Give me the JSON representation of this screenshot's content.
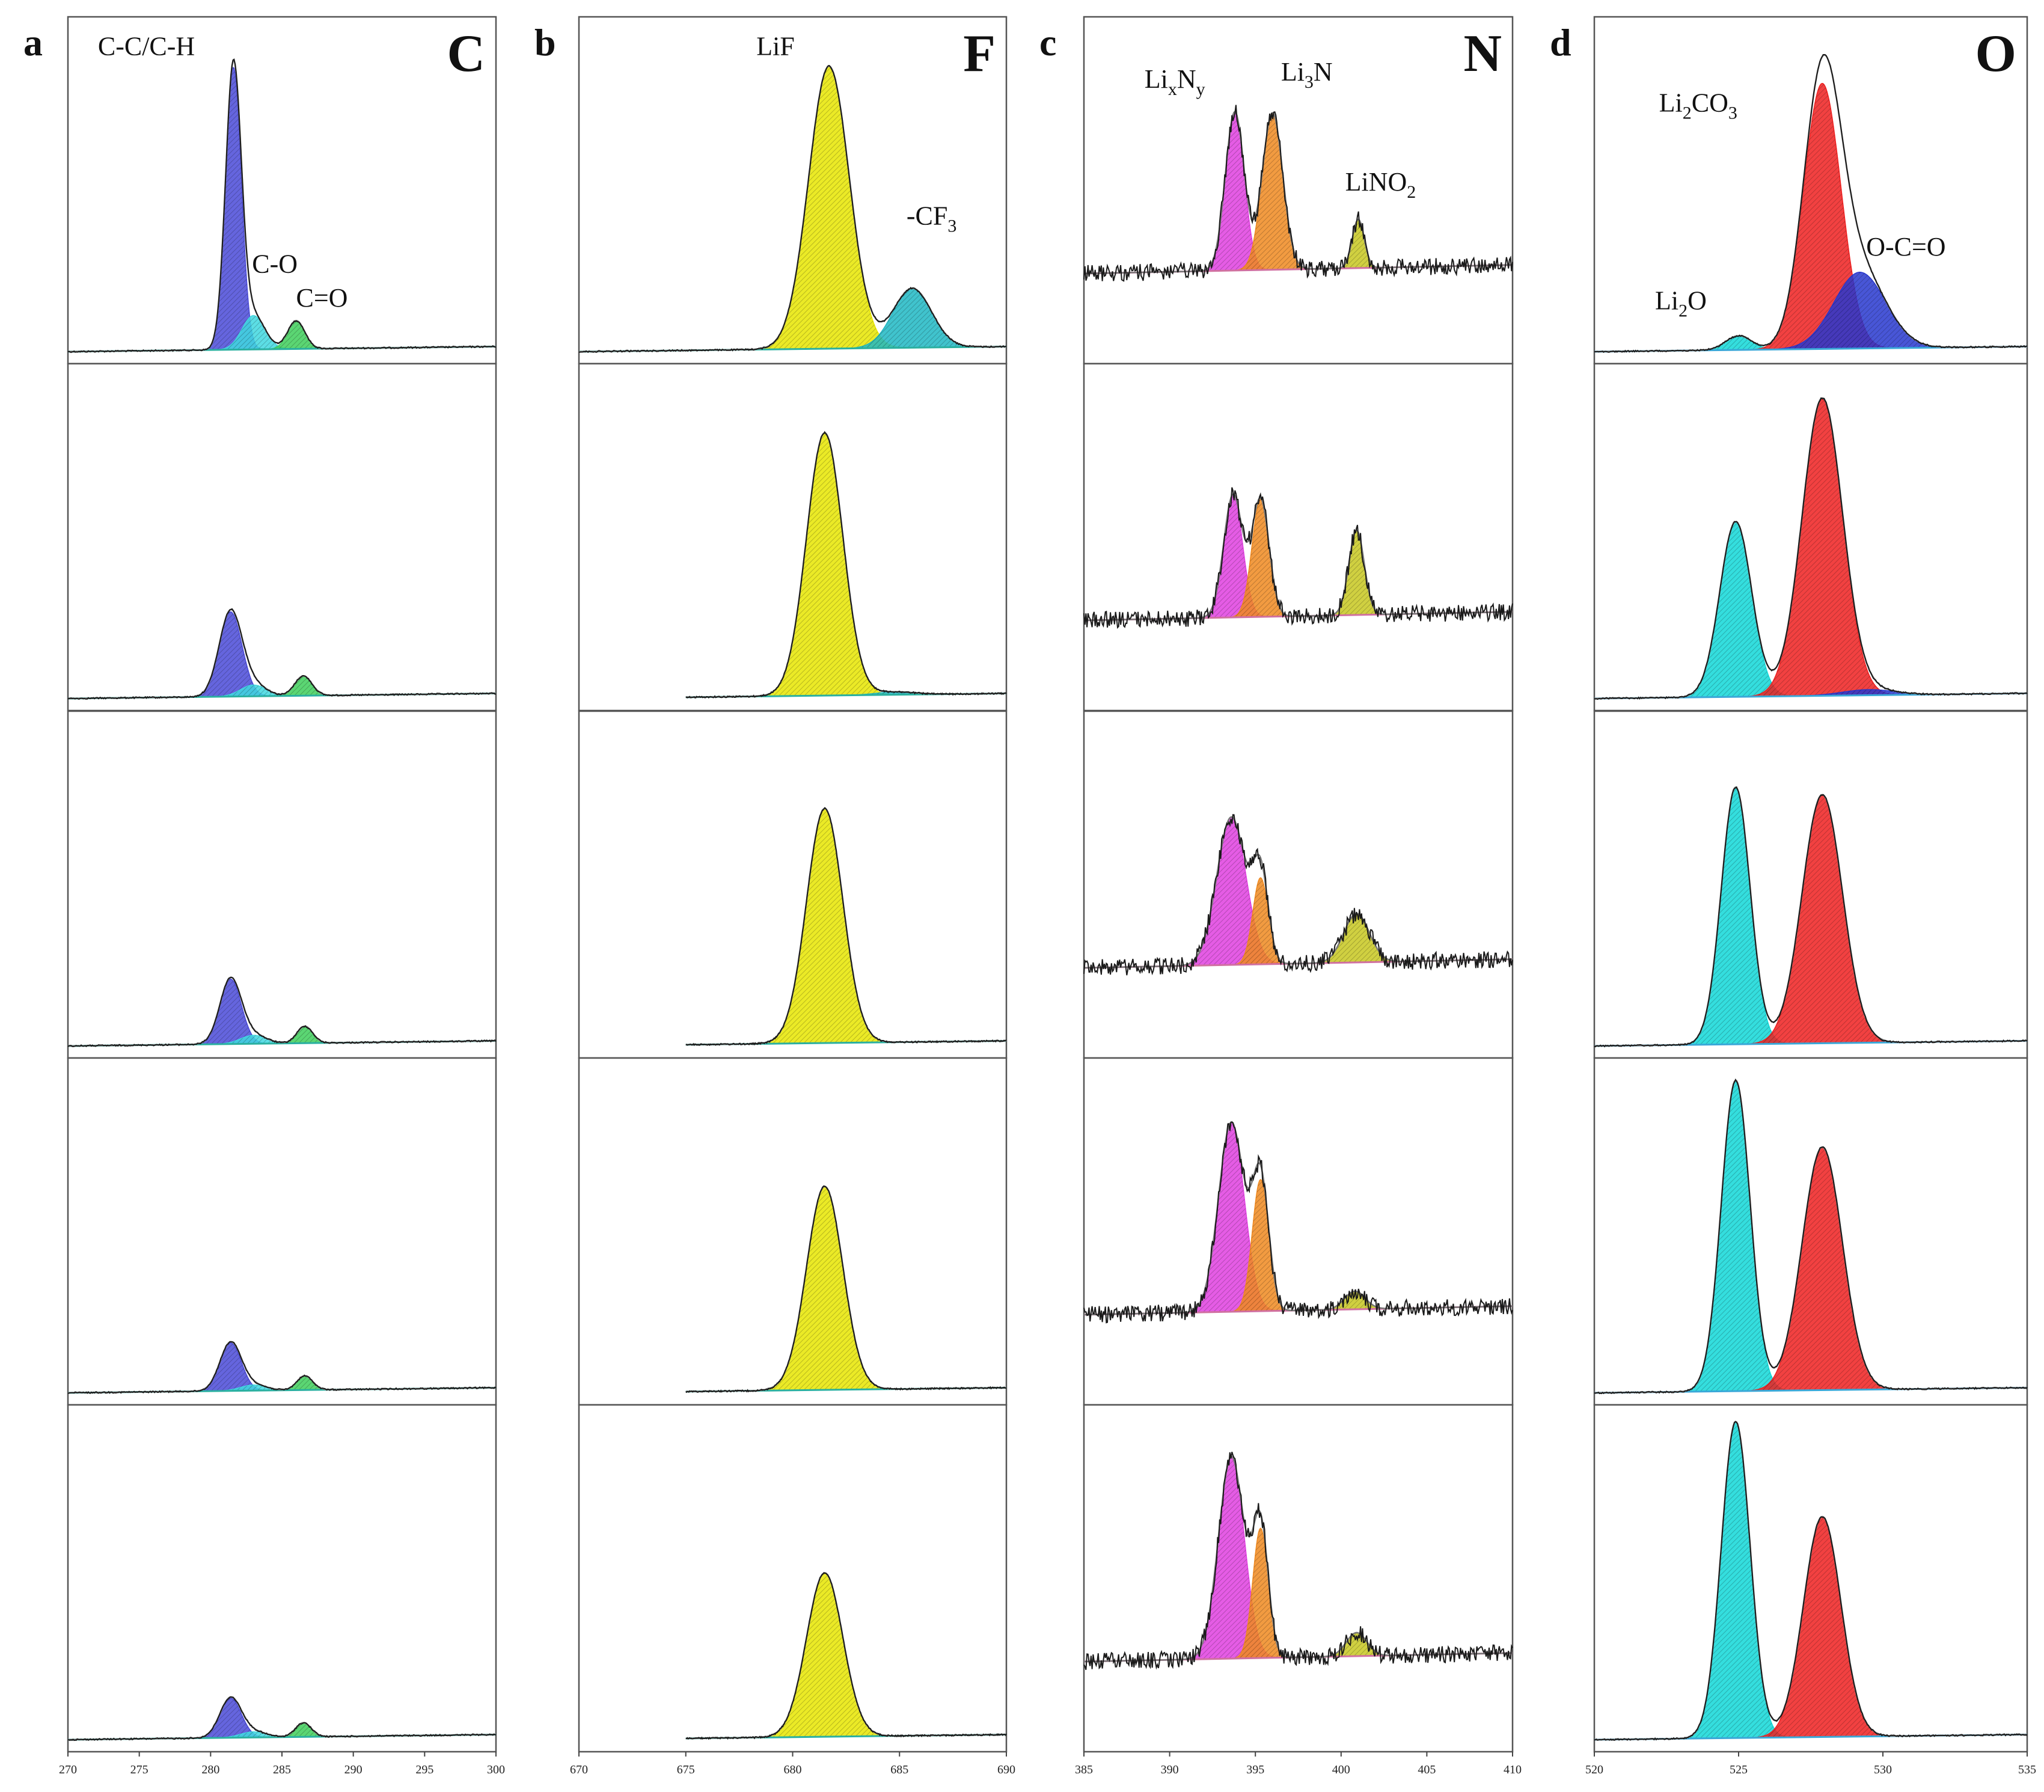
{
  "chart_data": [
    {
      "type": "line",
      "panel_letter": "a",
      "element": "C",
      "xlim": [
        270,
        300
      ],
      "xticks": [
        "270",
        "275",
        "280",
        "285",
        "290",
        "295",
        "300"
      ],
      "annotations": [
        {
          "text": "C-C/C-H",
          "at": [
            275.5,
            1.05
          ]
        },
        {
          "text": "C-O",
          "at": [
            284.5,
            0.28
          ]
        },
        {
          "text": "C=O",
          "at": [
            287.8,
            0.16
          ]
        }
      ],
      "components": [
        {
          "name": "C-C/C-H",
          "center": 281.6,
          "color": "#4a4ad8"
        },
        {
          "name": "C-O",
          "center": 283.2,
          "color": "#40d8e0"
        },
        {
          "name": "C=O",
          "center": 286.0,
          "color": "#3ecf5a"
        }
      ],
      "rows": [
        {
          "peaks": [
            {
              "center": 281.6,
              "height": 1.0,
              "sigma": 0.55
            },
            {
              "center": 283.0,
              "height": 0.12,
              "sigma": 0.8
            },
            {
              "center": 286.0,
              "height": 0.1,
              "sigma": 0.6
            }
          ]
        },
        {
          "peaks": [
            {
              "center": 281.4,
              "height": 0.3,
              "sigma": 0.8
            },
            {
              "center": 283.0,
              "height": 0.04,
              "sigma": 0.9
            },
            {
              "center": 286.5,
              "height": 0.07,
              "sigma": 0.6
            }
          ]
        },
        {
          "peaks": [
            {
              "center": 281.4,
              "height": 0.23,
              "sigma": 0.75
            },
            {
              "center": 283.0,
              "height": 0.03,
              "sigma": 0.9
            },
            {
              "center": 286.6,
              "height": 0.06,
              "sigma": 0.55
            }
          ]
        },
        {
          "peaks": [
            {
              "center": 281.4,
              "height": 0.17,
              "sigma": 0.75
            },
            {
              "center": 283.0,
              "height": 0.02,
              "sigma": 0.9
            },
            {
              "center": 286.6,
              "height": 0.05,
              "sigma": 0.55
            }
          ]
        },
        {
          "peaks": [
            {
              "center": 281.4,
              "height": 0.14,
              "sigma": 0.75
            },
            {
              "center": 283.0,
              "height": 0.02,
              "sigma": 0.9
            },
            {
              "center": 286.5,
              "height": 0.05,
              "sigma": 0.55
            }
          ]
        }
      ]
    },
    {
      "type": "line",
      "panel_letter": "b",
      "element": "F",
      "xlim": [
        670,
        690
      ],
      "xticks": [
        "670",
        "675",
        "680",
        "685",
        "690"
      ],
      "annotations": [
        {
          "text": "LiF",
          "at": [
            679.2,
            1.05
          ]
        },
        {
          "text": "-CF",
          "sub": "3",
          "at": [
            686.5,
            0.45
          ]
        }
      ],
      "components": [
        {
          "name": "LiF",
          "center": 681.7,
          "color": "#e8e600"
        },
        {
          "name": "-CF3",
          "center": 685.6,
          "color": "#1fb8c4"
        }
      ],
      "rows": [
        {
          "peaks": [
            {
              "center": 681.7,
              "height": 1.0,
              "sigma": 0.95
            },
            {
              "center": 685.6,
              "height": 0.21,
              "sigma": 0.9
            }
          ]
        },
        {
          "peaks": [
            {
              "center": 681.5,
              "height": 0.93,
              "sigma": 0.85
            },
            {
              "center": 684.8,
              "height": 0.01,
              "sigma": 0.9
            }
          ]
        },
        {
          "peaks": [
            {
              "center": 681.5,
              "height": 0.83,
              "sigma": 0.85
            }
          ]
        },
        {
          "peaks": [
            {
              "center": 681.5,
              "height": 0.72,
              "sigma": 0.85
            }
          ]
        },
        {
          "peaks": [
            {
              "center": 681.5,
              "height": 0.58,
              "sigma": 0.85
            }
          ]
        }
      ]
    },
    {
      "type": "line",
      "panel_letter": "c",
      "element": "N",
      "xlim": [
        385,
        410
      ],
      "xticks": [
        "385",
        "390",
        "395",
        "400",
        "405",
        "410"
      ],
      "annotations": [
        {
          "text": "Li",
          "sub": "x",
          "text2": "N",
          "sub2": "y",
          "at": [
            390.3,
            1.03
          ]
        },
        {
          "text": "Li",
          "sub": "3",
          "text2": "N",
          "at": [
            398.0,
            1.07
          ]
        },
        {
          "text": "LiNO",
          "sub": "2",
          "at": [
            402.3,
            0.46
          ]
        }
      ],
      "components": [
        {
          "name": "LixNy",
          "center": 393.8,
          "color": "#e040e0"
        },
        {
          "name": "Li3N",
          "center": 396.0,
          "color": "#f08a20"
        },
        {
          "name": "LiNO2",
          "center": 401.0,
          "color": "#c8c820"
        }
      ],
      "rows": [
        {
          "peaks": [
            {
              "center": 393.8,
              "height": 0.88,
              "sigma": 0.55
            },
            {
              "center": 396.0,
              "height": 0.87,
              "sigma": 0.6
            },
            {
              "center": 401.0,
              "height": 0.27,
              "sigma": 0.35
            }
          ]
        },
        {
          "peaks": [
            {
              "center": 393.7,
              "height": 0.68,
              "sigma": 0.55
            },
            {
              "center": 395.3,
              "height": 0.65,
              "sigma": 0.5
            },
            {
              "center": 400.9,
              "height": 0.47,
              "sigma": 0.45
            }
          ]
        },
        {
          "peaks": [
            {
              "center": 393.6,
              "height": 0.82,
              "sigma": 0.85
            },
            {
              "center": 395.3,
              "height": 0.48,
              "sigma": 0.45
            },
            {
              "center": 400.9,
              "height": 0.27,
              "sigma": 0.75
            }
          ]
        },
        {
          "peaks": [
            {
              "center": 393.6,
              "height": 1.05,
              "sigma": 0.75
            },
            {
              "center": 395.3,
              "height": 0.73,
              "sigma": 0.48
            },
            {
              "center": 400.8,
              "height": 0.1,
              "sigma": 0.6
            }
          ]
        },
        {
          "peaks": [
            {
              "center": 393.6,
              "height": 1.12,
              "sigma": 0.75
            },
            {
              "center": 395.3,
              "height": 0.72,
              "sigma": 0.45
            },
            {
              "center": 400.9,
              "height": 0.13,
              "sigma": 0.6
            }
          ]
        }
      ]
    },
    {
      "type": "line",
      "panel_letter": "d",
      "element": "O",
      "xlim": [
        520,
        535
      ],
      "xticks": [
        "520",
        "525",
        "530",
        "535"
      ],
      "annotations": [
        {
          "text": "Li",
          "sub": "2",
          "text2": "CO",
          "sub2": "3",
          "at": [
            523.6,
            0.85
          ]
        },
        {
          "text": "O-C=O",
          "at": [
            530.8,
            0.34
          ]
        },
        {
          "text": "Li",
          "sub": "2",
          "text2": "O",
          "at": [
            523.0,
            0.15
          ]
        }
      ],
      "components": [
        {
          "name": "Li2O",
          "center": 524.9,
          "color": "#10d8d8"
        },
        {
          "name": "Li2CO3",
          "center": 527.9,
          "color": "#f02020"
        },
        {
          "name": "O-C=O",
          "center": 529.2,
          "color": "#2838d0"
        }
      ],
      "rows": [
        {
          "peaks": [
            {
              "center": 525.0,
              "height": 0.05,
              "sigma": 0.45
            },
            {
              "center": 527.9,
              "height": 0.94,
              "sigma": 0.65
            },
            {
              "center": 529.2,
              "height": 0.27,
              "sigma": 0.9
            }
          ]
        },
        {
          "peaks": [
            {
              "center": 524.9,
              "height": 0.62,
              "sigma": 0.55
            },
            {
              "center": 527.9,
              "height": 1.05,
              "sigma": 0.7
            },
            {
              "center": 529.5,
              "height": 0.02,
              "sigma": 0.9
            }
          ]
        },
        {
          "peaks": [
            {
              "center": 524.9,
              "height": 0.91,
              "sigma": 0.5
            },
            {
              "center": 527.9,
              "height": 0.88,
              "sigma": 0.7
            }
          ]
        },
        {
          "peaks": [
            {
              "center": 524.9,
              "height": 1.1,
              "sigma": 0.5
            },
            {
              "center": 527.9,
              "height": 0.86,
              "sigma": 0.7
            }
          ]
        },
        {
          "peaks": [
            {
              "center": 524.9,
              "height": 1.12,
              "sigma": 0.5
            },
            {
              "center": 527.9,
              "height": 0.78,
              "sigma": 0.65
            }
          ]
        }
      ]
    }
  ]
}
